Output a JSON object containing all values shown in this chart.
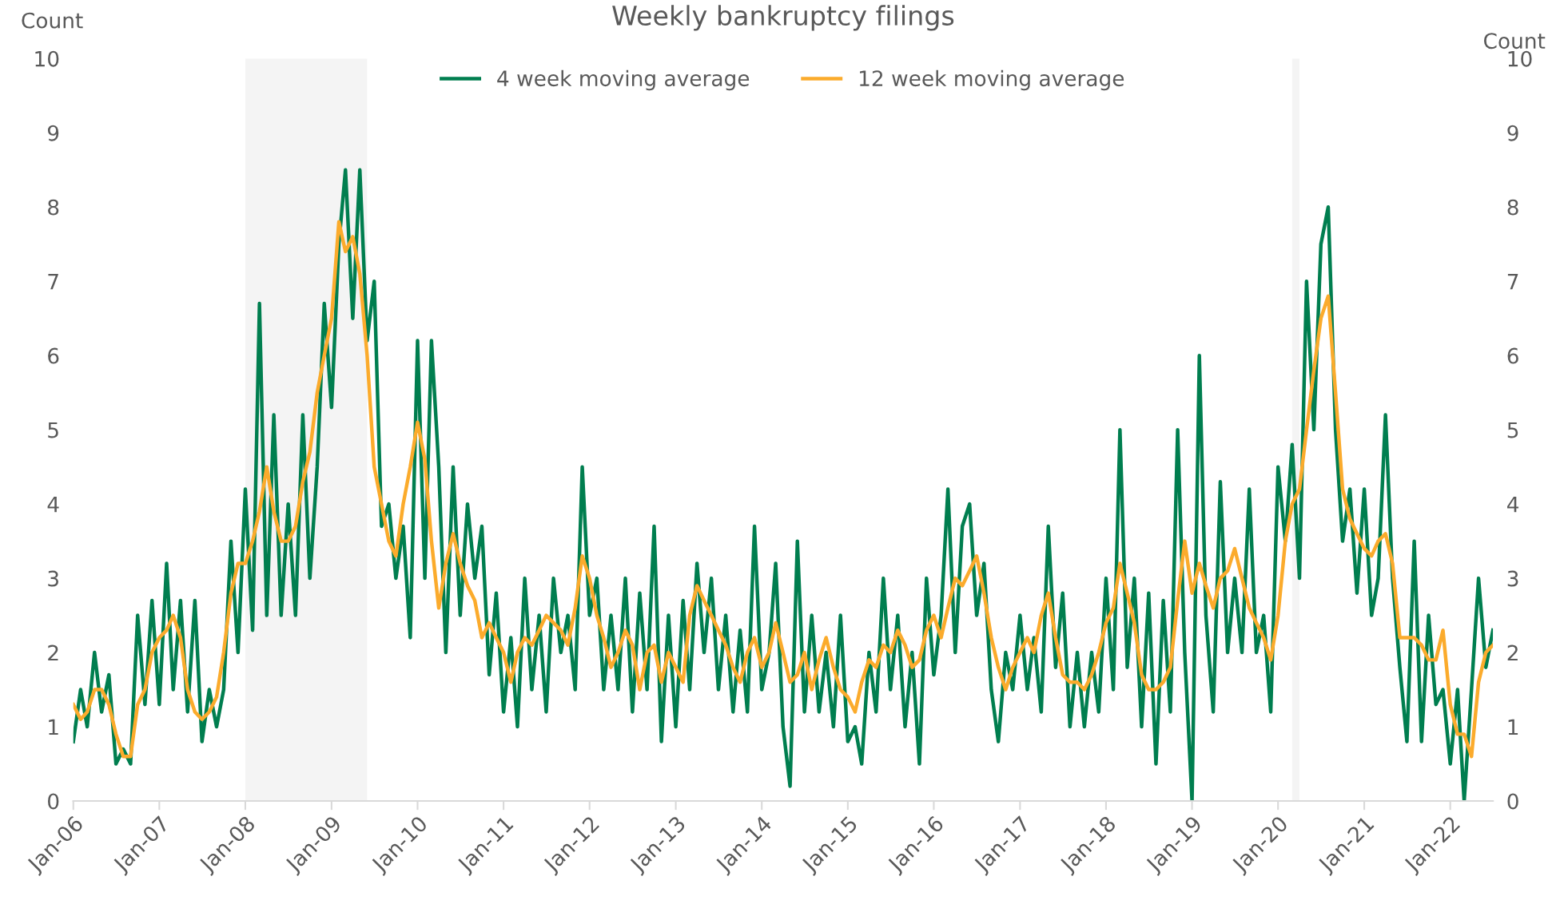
{
  "chart_data": {
    "type": "line",
    "title": "Weekly bankruptcy filings",
    "ylabel": "Count",
    "y2label": "Count",
    "x": [
      "2006-01",
      "2006-02",
      "2006-03",
      "2006-04",
      "2006-05",
      "2006-06",
      "2006-07",
      "2006-08",
      "2006-09",
      "2006-10",
      "2006-11",
      "2006-12",
      "2007-01",
      "2007-02",
      "2007-03",
      "2007-04",
      "2007-05",
      "2007-06",
      "2007-07",
      "2007-08",
      "2007-09",
      "2007-10",
      "2007-11",
      "2007-12",
      "2008-01",
      "2008-02",
      "2008-03",
      "2008-04",
      "2008-05",
      "2008-06",
      "2008-07",
      "2008-08",
      "2008-09",
      "2008-10",
      "2008-11",
      "2008-12",
      "2009-01",
      "2009-02",
      "2009-03",
      "2009-04",
      "2009-05",
      "2009-06",
      "2009-07",
      "2009-08",
      "2009-09",
      "2009-10",
      "2009-11",
      "2009-12",
      "2010-01",
      "2010-02",
      "2010-03",
      "2010-04",
      "2010-05",
      "2010-06",
      "2010-07",
      "2010-08",
      "2010-09",
      "2010-10",
      "2010-11",
      "2010-12",
      "2011-01",
      "2011-02",
      "2011-03",
      "2011-04",
      "2011-05",
      "2011-06",
      "2011-07",
      "2011-08",
      "2011-09",
      "2011-10",
      "2011-11",
      "2011-12",
      "2012-01",
      "2012-02",
      "2012-03",
      "2012-04",
      "2012-05",
      "2012-06",
      "2012-07",
      "2012-08",
      "2012-09",
      "2012-10",
      "2012-11",
      "2012-12",
      "2013-01",
      "2013-02",
      "2013-03",
      "2013-04",
      "2013-05",
      "2013-06",
      "2013-07",
      "2013-08",
      "2013-09",
      "2013-10",
      "2013-11",
      "2013-12",
      "2014-01",
      "2014-02",
      "2014-03",
      "2014-04",
      "2014-05",
      "2014-06",
      "2014-07",
      "2014-08",
      "2014-09",
      "2014-10",
      "2014-11",
      "2014-12",
      "2015-01",
      "2015-02",
      "2015-03",
      "2015-04",
      "2015-05",
      "2015-06",
      "2015-07",
      "2015-08",
      "2015-09",
      "2015-10",
      "2015-11",
      "2015-12",
      "2016-01",
      "2016-02",
      "2016-03",
      "2016-04",
      "2016-05",
      "2016-06",
      "2016-07",
      "2016-08",
      "2016-09",
      "2016-10",
      "2016-11",
      "2016-12",
      "2017-01",
      "2017-02",
      "2017-03",
      "2017-04",
      "2017-05",
      "2017-06",
      "2017-07",
      "2017-08",
      "2017-09",
      "2017-10",
      "2017-11",
      "2017-12",
      "2018-01",
      "2018-02",
      "2018-03",
      "2018-04",
      "2018-05",
      "2018-06",
      "2018-07",
      "2018-08",
      "2018-09",
      "2018-10",
      "2018-11",
      "2018-12",
      "2019-01",
      "2019-02",
      "2019-03",
      "2019-04",
      "2019-05",
      "2019-06",
      "2019-07",
      "2019-08",
      "2019-09",
      "2019-10",
      "2019-11",
      "2019-12",
      "2020-01",
      "2020-02",
      "2020-03",
      "2020-04",
      "2020-05",
      "2020-06",
      "2020-07",
      "2020-08",
      "2020-09",
      "2020-10",
      "2020-11",
      "2020-12",
      "2021-01",
      "2021-02",
      "2021-03",
      "2021-04",
      "2021-05",
      "2021-06",
      "2021-07",
      "2021-08",
      "2021-09",
      "2021-10",
      "2021-11",
      "2021-12",
      "2022-01",
      "2022-02",
      "2022-03",
      "2022-04",
      "2022-05",
      "2022-06",
      "2022-07"
    ],
    "series": [
      {
        "name": "4 week moving average",
        "color": "#007e4f",
        "values": [
          0.8,
          1.5,
          1.0,
          2.0,
          1.2,
          1.7,
          0.5,
          0.7,
          0.5,
          2.5,
          1.3,
          2.7,
          1.3,
          3.2,
          1.5,
          2.7,
          1.2,
          2.7,
          0.8,
          1.5,
          1.0,
          1.5,
          3.5,
          2.0,
          4.2,
          2.3,
          6.7,
          2.5,
          5.2,
          2.5,
          4.0,
          2.5,
          5.2,
          3.0,
          4.5,
          6.7,
          5.3,
          7.5,
          8.5,
          6.5,
          8.5,
          6.2,
          7.0,
          3.7,
          4.0,
          3.0,
          3.7,
          2.2,
          6.2,
          3.0,
          6.2,
          4.5,
          2.0,
          4.5,
          2.5,
          4.0,
          3.0,
          3.7,
          1.7,
          2.8,
          1.2,
          2.2,
          1.0,
          3.0,
          1.5,
          2.5,
          1.2,
          3.0,
          2.0,
          2.5,
          1.5,
          4.5,
          2.5,
          3.0,
          1.5,
          2.5,
          1.5,
          3.0,
          1.2,
          2.8,
          1.5,
          3.7,
          0.8,
          2.5,
          1.0,
          2.7,
          1.5,
          3.2,
          2.0,
          3.0,
          1.5,
          2.5,
          1.2,
          2.3,
          1.2,
          3.7,
          1.5,
          2.0,
          3.2,
          1.0,
          0.2,
          3.5,
          1.2,
          2.5,
          1.2,
          2.0,
          1.0,
          2.5,
          0.8,
          1.0,
          0.5,
          2.0,
          1.2,
          3.0,
          1.5,
          2.5,
          1.0,
          2.0,
          0.5,
          3.0,
          1.7,
          2.5,
          4.2,
          2.0,
          3.7,
          4.0,
          2.5,
          3.2,
          1.5,
          0.8,
          2.0,
          1.5,
          2.5,
          1.5,
          2.2,
          1.2,
          3.7,
          1.8,
          2.8,
          1.0,
          2.0,
          1.0,
          2.0,
          1.2,
          3.0,
          1.5,
          5.0,
          1.8,
          3.0,
          1.0,
          2.8,
          0.5,
          2.7,
          1.2,
          5.0,
          2.0,
          0.0,
          6.0,
          2.5,
          1.2,
          4.3,
          2.0,
          3.0,
          2.0,
          4.2,
          2.0,
          2.5,
          1.2,
          4.5,
          3.5,
          4.8,
          3.0,
          7.0,
          5.0,
          7.5,
          8.0,
          5.0,
          3.5,
          4.2,
          2.8,
          4.2,
          2.5,
          3.0,
          5.2,
          3.0,
          1.8,
          0.8,
          3.5,
          0.8,
          2.5,
          1.3,
          1.5,
          0.5,
          1.5,
          0.0,
          1.5,
          3.0,
          1.8,
          2.3
        ]
      },
      {
        "name": "12 week moving average",
        "color": "#fbab2c",
        "values": [
          1.3,
          1.1,
          1.2,
          1.5,
          1.5,
          1.3,
          0.9,
          0.6,
          0.6,
          1.3,
          1.5,
          2.0,
          2.2,
          2.3,
          2.5,
          2.2,
          1.5,
          1.2,
          1.1,
          1.2,
          1.4,
          2.0,
          2.8,
          3.2,
          3.2,
          3.5,
          3.9,
          4.5,
          3.9,
          3.5,
          3.5,
          3.7,
          4.3,
          4.7,
          5.5,
          6.0,
          6.5,
          7.8,
          7.4,
          7.6,
          7.1,
          6.0,
          4.5,
          4.0,
          3.5,
          3.3,
          4.0,
          4.5,
          5.1,
          4.6,
          3.5,
          2.6,
          3.2,
          3.6,
          3.2,
          2.9,
          2.7,
          2.2,
          2.4,
          2.2,
          2.0,
          1.6,
          2.0,
          2.2,
          2.1,
          2.3,
          2.5,
          2.4,
          2.3,
          2.1,
          2.6,
          3.3,
          3.0,
          2.5,
          2.2,
          1.8,
          2.0,
          2.3,
          2.1,
          1.5,
          2.0,
          2.1,
          1.6,
          2.0,
          1.8,
          1.6,
          2.5,
          2.9,
          2.7,
          2.5,
          2.3,
          2.1,
          1.8,
          1.6,
          2.0,
          2.2,
          1.8,
          2.0,
          2.4,
          2.0,
          1.6,
          1.7,
          2.0,
          1.5,
          1.9,
          2.2,
          1.8,
          1.5,
          1.4,
          1.2,
          1.6,
          1.9,
          1.8,
          2.1,
          2.0,
          2.3,
          2.1,
          1.8,
          1.9,
          2.3,
          2.5,
          2.2,
          2.6,
          3.0,
          2.9,
          3.1,
          3.3,
          2.8,
          2.2,
          1.8,
          1.5,
          1.8,
          2.0,
          2.2,
          2.0,
          2.5,
          2.8,
          2.2,
          1.7,
          1.6,
          1.6,
          1.5,
          1.7,
          2.0,
          2.4,
          2.6,
          3.2,
          2.8,
          2.4,
          1.7,
          1.5,
          1.5,
          1.6,
          1.8,
          2.7,
          3.5,
          2.8,
          3.2,
          2.9,
          2.6,
          3.0,
          3.1,
          3.4,
          3.0,
          2.6,
          2.4,
          2.2,
          1.9,
          2.5,
          3.5,
          4.0,
          4.2,
          5.0,
          5.8,
          6.5,
          6.8,
          5.5,
          4.2,
          3.8,
          3.6,
          3.4,
          3.3,
          3.5,
          3.6,
          3.2,
          2.2,
          2.2,
          2.2,
          2.1,
          1.9,
          1.9,
          2.3,
          1.3,
          0.9,
          0.9,
          0.6,
          1.6,
          2.0,
          2.1
        ]
      }
    ],
    "xlim": [
      "2006-01",
      "2022-07"
    ],
    "xticks": [
      {
        "value": "2006-01",
        "label": "Jan-06"
      },
      {
        "value": "2007-01",
        "label": "Jan-07"
      },
      {
        "value": "2008-01",
        "label": "Jan-08"
      },
      {
        "value": "2009-01",
        "label": "Jan-09"
      },
      {
        "value": "2010-01",
        "label": "Jan-10"
      },
      {
        "value": "2011-01",
        "label": "Jan-11"
      },
      {
        "value": "2012-01",
        "label": "Jan-12"
      },
      {
        "value": "2013-01",
        "label": "Jan-13"
      },
      {
        "value": "2014-01",
        "label": "Jan-14"
      },
      {
        "value": "2015-01",
        "label": "Jan-15"
      },
      {
        "value": "2016-01",
        "label": "Jan-16"
      },
      {
        "value": "2017-01",
        "label": "Jan-17"
      },
      {
        "value": "2018-01",
        "label": "Jan-18"
      },
      {
        "value": "2019-01",
        "label": "Jan-19"
      },
      {
        "value": "2020-01",
        "label": "Jan-20"
      },
      {
        "value": "2021-01",
        "label": "Jan-21"
      },
      {
        "value": "2022-01",
        "label": "Jan-22"
      }
    ],
    "ylim": [
      0,
      10
    ],
    "yticks": [
      0,
      1,
      2,
      3,
      4,
      5,
      6,
      7,
      8,
      9,
      10
    ],
    "y2lim": [
      0,
      10
    ],
    "y2ticks": [
      0,
      1,
      2,
      3,
      4,
      5,
      6,
      7,
      8,
      9,
      10
    ],
    "bands": [
      {
        "axis": "x",
        "from": "2008-01",
        "to": "2009-06",
        "color": "#f4f4f4"
      },
      {
        "axis": "x",
        "from": "2020-03",
        "to": "2020-04",
        "color": "#f4f4f4"
      }
    ],
    "grid": false,
    "legend": "top",
    "marker": "none",
    "line_style": "solid"
  }
}
